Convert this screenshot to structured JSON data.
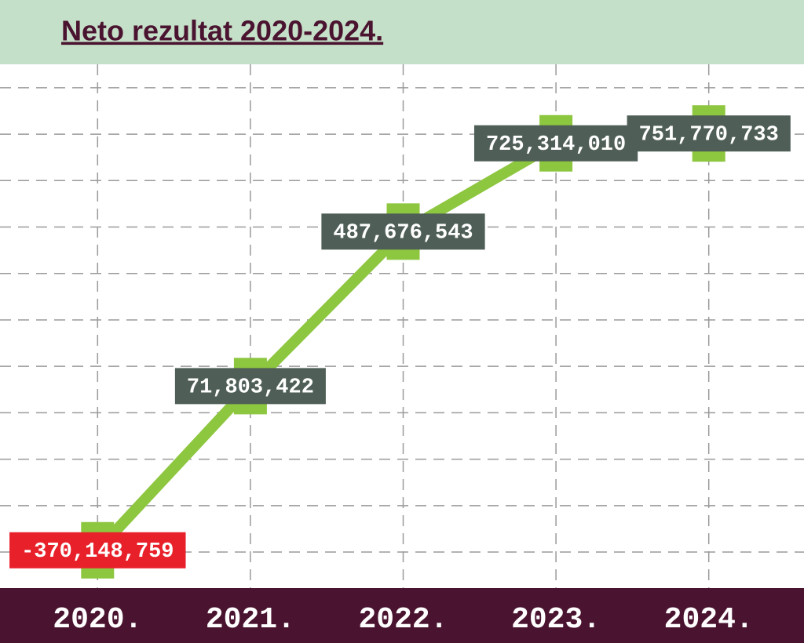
{
  "chart_data": {
    "type": "line",
    "title": "Neto rezultat 2020-2024.",
    "categories": [
      "2020.",
      "2021.",
      "2022.",
      "2023.",
      "2024."
    ],
    "series": [
      {
        "color": "#8dc63f",
        "values": [
          -370148759,
          71803422,
          487676543,
          725314010,
          751770733
        ],
        "value_labels": [
          "-370,148,759",
          "71,803,422",
          "487,676,543",
          "725,314,010",
          "751,770,733"
        ]
      }
    ],
    "label_color": "#4f5f57",
    "negative_label_color": "#e8202a",
    "ylim": [
      -472000000,
      938000000
    ],
    "yticks": [
      -375000000,
      -250000000,
      -125000000,
      0,
      125000000,
      250000000,
      375000000,
      500000000,
      625000000,
      750000000,
      875000000
    ],
    "grid": true
  }
}
